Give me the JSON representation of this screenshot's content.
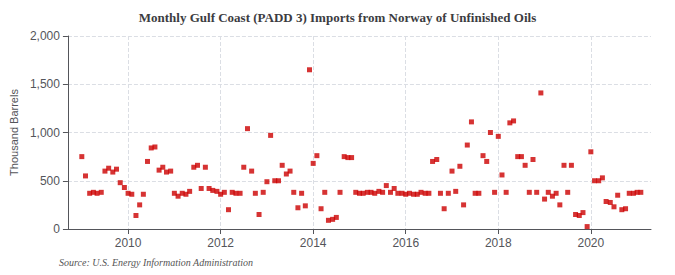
{
  "chart_data": {
    "type": "scatter",
    "title": "Monthly Gulf Coast (PADD 3) Imports from Norway of Unfinished Oils",
    "ylabel": "Thousand Barrels",
    "annotations": [
      "Source: U.S. Energy Information Administration"
    ],
    "color": "#cc0000",
    "marker": "square",
    "grid": true,
    "xlim": [
      2008.7,
      2021.3
    ],
    "xticks": [
      2010,
      2012,
      2014,
      2016,
      2018,
      2020
    ],
    "ylim": [
      0,
      2000
    ],
    "yticks": [
      0,
      500,
      {
        "value": 1000,
        "label": "1,000"
      },
      {
        "value": 1500,
        "label": "1,500"
      },
      {
        "value": 2000,
        "label": "2,000"
      }
    ],
    "x": [
      2009.0,
      2009.08,
      2009.17,
      2009.25,
      2009.33,
      2009.42,
      2009.5,
      2009.58,
      2009.67,
      2009.75,
      2009.83,
      2009.92,
      2010.0,
      2010.08,
      2010.17,
      2010.25,
      2010.33,
      2010.42,
      2010.5,
      2010.58,
      2010.67,
      2010.75,
      2010.83,
      2010.92,
      2011.0,
      2011.08,
      2011.17,
      2011.25,
      2011.33,
      2011.42,
      2011.5,
      2011.58,
      2011.67,
      2011.75,
      2011.83,
      2011.92,
      2012.0,
      2012.08,
      2012.17,
      2012.25,
      2012.33,
      2012.42,
      2012.5,
      2012.58,
      2012.67,
      2012.75,
      2012.83,
      2012.92,
      2013.0,
      2013.08,
      2013.17,
      2013.25,
      2013.33,
      2013.42,
      2013.5,
      2013.58,
      2013.67,
      2013.75,
      2013.83,
      2013.92,
      2014.0,
      2014.08,
      2014.17,
      2014.25,
      2014.33,
      2014.42,
      2014.5,
      2014.58,
      2014.67,
      2014.75,
      2014.83,
      2014.92,
      2015.0,
      2015.08,
      2015.17,
      2015.25,
      2015.33,
      2015.42,
      2015.5,
      2015.58,
      2015.67,
      2015.75,
      2015.83,
      2015.92,
      2016.0,
      2016.08,
      2016.17,
      2016.25,
      2016.33,
      2016.42,
      2016.5,
      2016.58,
      2016.67,
      2016.75,
      2016.83,
      2016.92,
      2017.0,
      2017.08,
      2017.17,
      2017.25,
      2017.33,
      2017.42,
      2017.5,
      2017.58,
      2017.67,
      2017.75,
      2017.83,
      2017.92,
      2018.0,
      2018.08,
      2018.17,
      2018.25,
      2018.33,
      2018.42,
      2018.5,
      2018.58,
      2018.67,
      2018.75,
      2018.83,
      2018.92,
      2019.0,
      2019.08,
      2019.17,
      2019.25,
      2019.33,
      2019.42,
      2019.5,
      2019.58,
      2019.67,
      2019.75,
      2019.83,
      2019.92,
      2020.0,
      2020.08,
      2020.17,
      2020.25,
      2020.33,
      2020.42,
      2020.5,
      2020.58,
      2020.67,
      2020.75,
      2020.83,
      2020.92,
      2021.0,
      2021.08
    ],
    "values": [
      750,
      550,
      370,
      380,
      370,
      380,
      600,
      630,
      590,
      620,
      480,
      430,
      370,
      360,
      140,
      250,
      360,
      700,
      840,
      850,
      610,
      640,
      590,
      600,
      370,
      340,
      370,
      360,
      390,
      640,
      660,
      420,
      640,
      420,
      400,
      390,
      360,
      380,
      200,
      380,
      370,
      370,
      640,
      1040,
      600,
      370,
      150,
      380,
      490,
      970,
      500,
      500,
      660,
      570,
      600,
      380,
      220,
      370,
      240,
      1650,
      680,
      760,
      210,
      380,
      90,
      100,
      120,
      380,
      750,
      740,
      740,
      380,
      370,
      370,
      380,
      380,
      370,
      390,
      380,
      450,
      380,
      420,
      370,
      370,
      360,
      370,
      360,
      360,
      380,
      370,
      370,
      700,
      720,
      370,
      210,
      370,
      600,
      390,
      650,
      250,
      870,
      1110,
      370,
      370,
      760,
      700,
      1000,
      380,
      960,
      560,
      380,
      1100,
      1120,
      750,
      750,
      660,
      380,
      720,
      380,
      1410,
      310,
      380,
      340,
      370,
      250,
      660,
      380,
      660,
      150,
      140,
      170,
      25,
      800,
      500,
      500,
      530,
      285,
      275,
      230,
      350,
      200,
      210,
      370,
      370,
      380,
      380
    ]
  }
}
